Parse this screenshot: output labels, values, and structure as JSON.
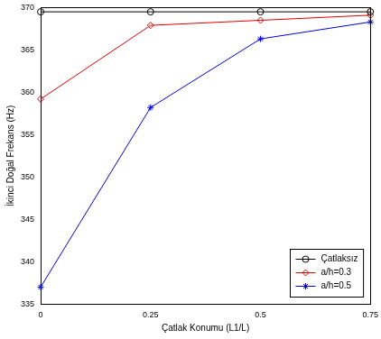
{
  "chart_data": {
    "type": "line",
    "x_label": "Çatlak Konumu (L1/L)",
    "y_label": "İkinci Doğal Frekans (Hz)",
    "x": [
      0,
      0.25,
      0.5,
      0.75
    ],
    "series": [
      {
        "name": "Çatlaksız",
        "color": "#000000",
        "marker": "circle",
        "values": [
          369.5,
          369.5,
          369.5,
          369.5
        ]
      },
      {
        "name": "a/h=0.3",
        "color": "#e00000",
        "marker": "diamond",
        "values": [
          359.2,
          367.9,
          368.5,
          369.1
        ]
      },
      {
        "name": "a/h=0.5",
        "color": "#0000e0",
        "marker": "star",
        "values": [
          337.0,
          358.2,
          366.3,
          368.3
        ]
      }
    ],
    "xlim": [
      0,
      0.75
    ],
    "xticks": [
      0,
      0.25,
      0.5,
      0.75
    ],
    "ylim": [
      335,
      370
    ],
    "yticks": [
      335,
      340,
      345,
      350,
      355,
      360,
      365,
      370
    ],
    "grid": false,
    "legend": "lower right"
  }
}
